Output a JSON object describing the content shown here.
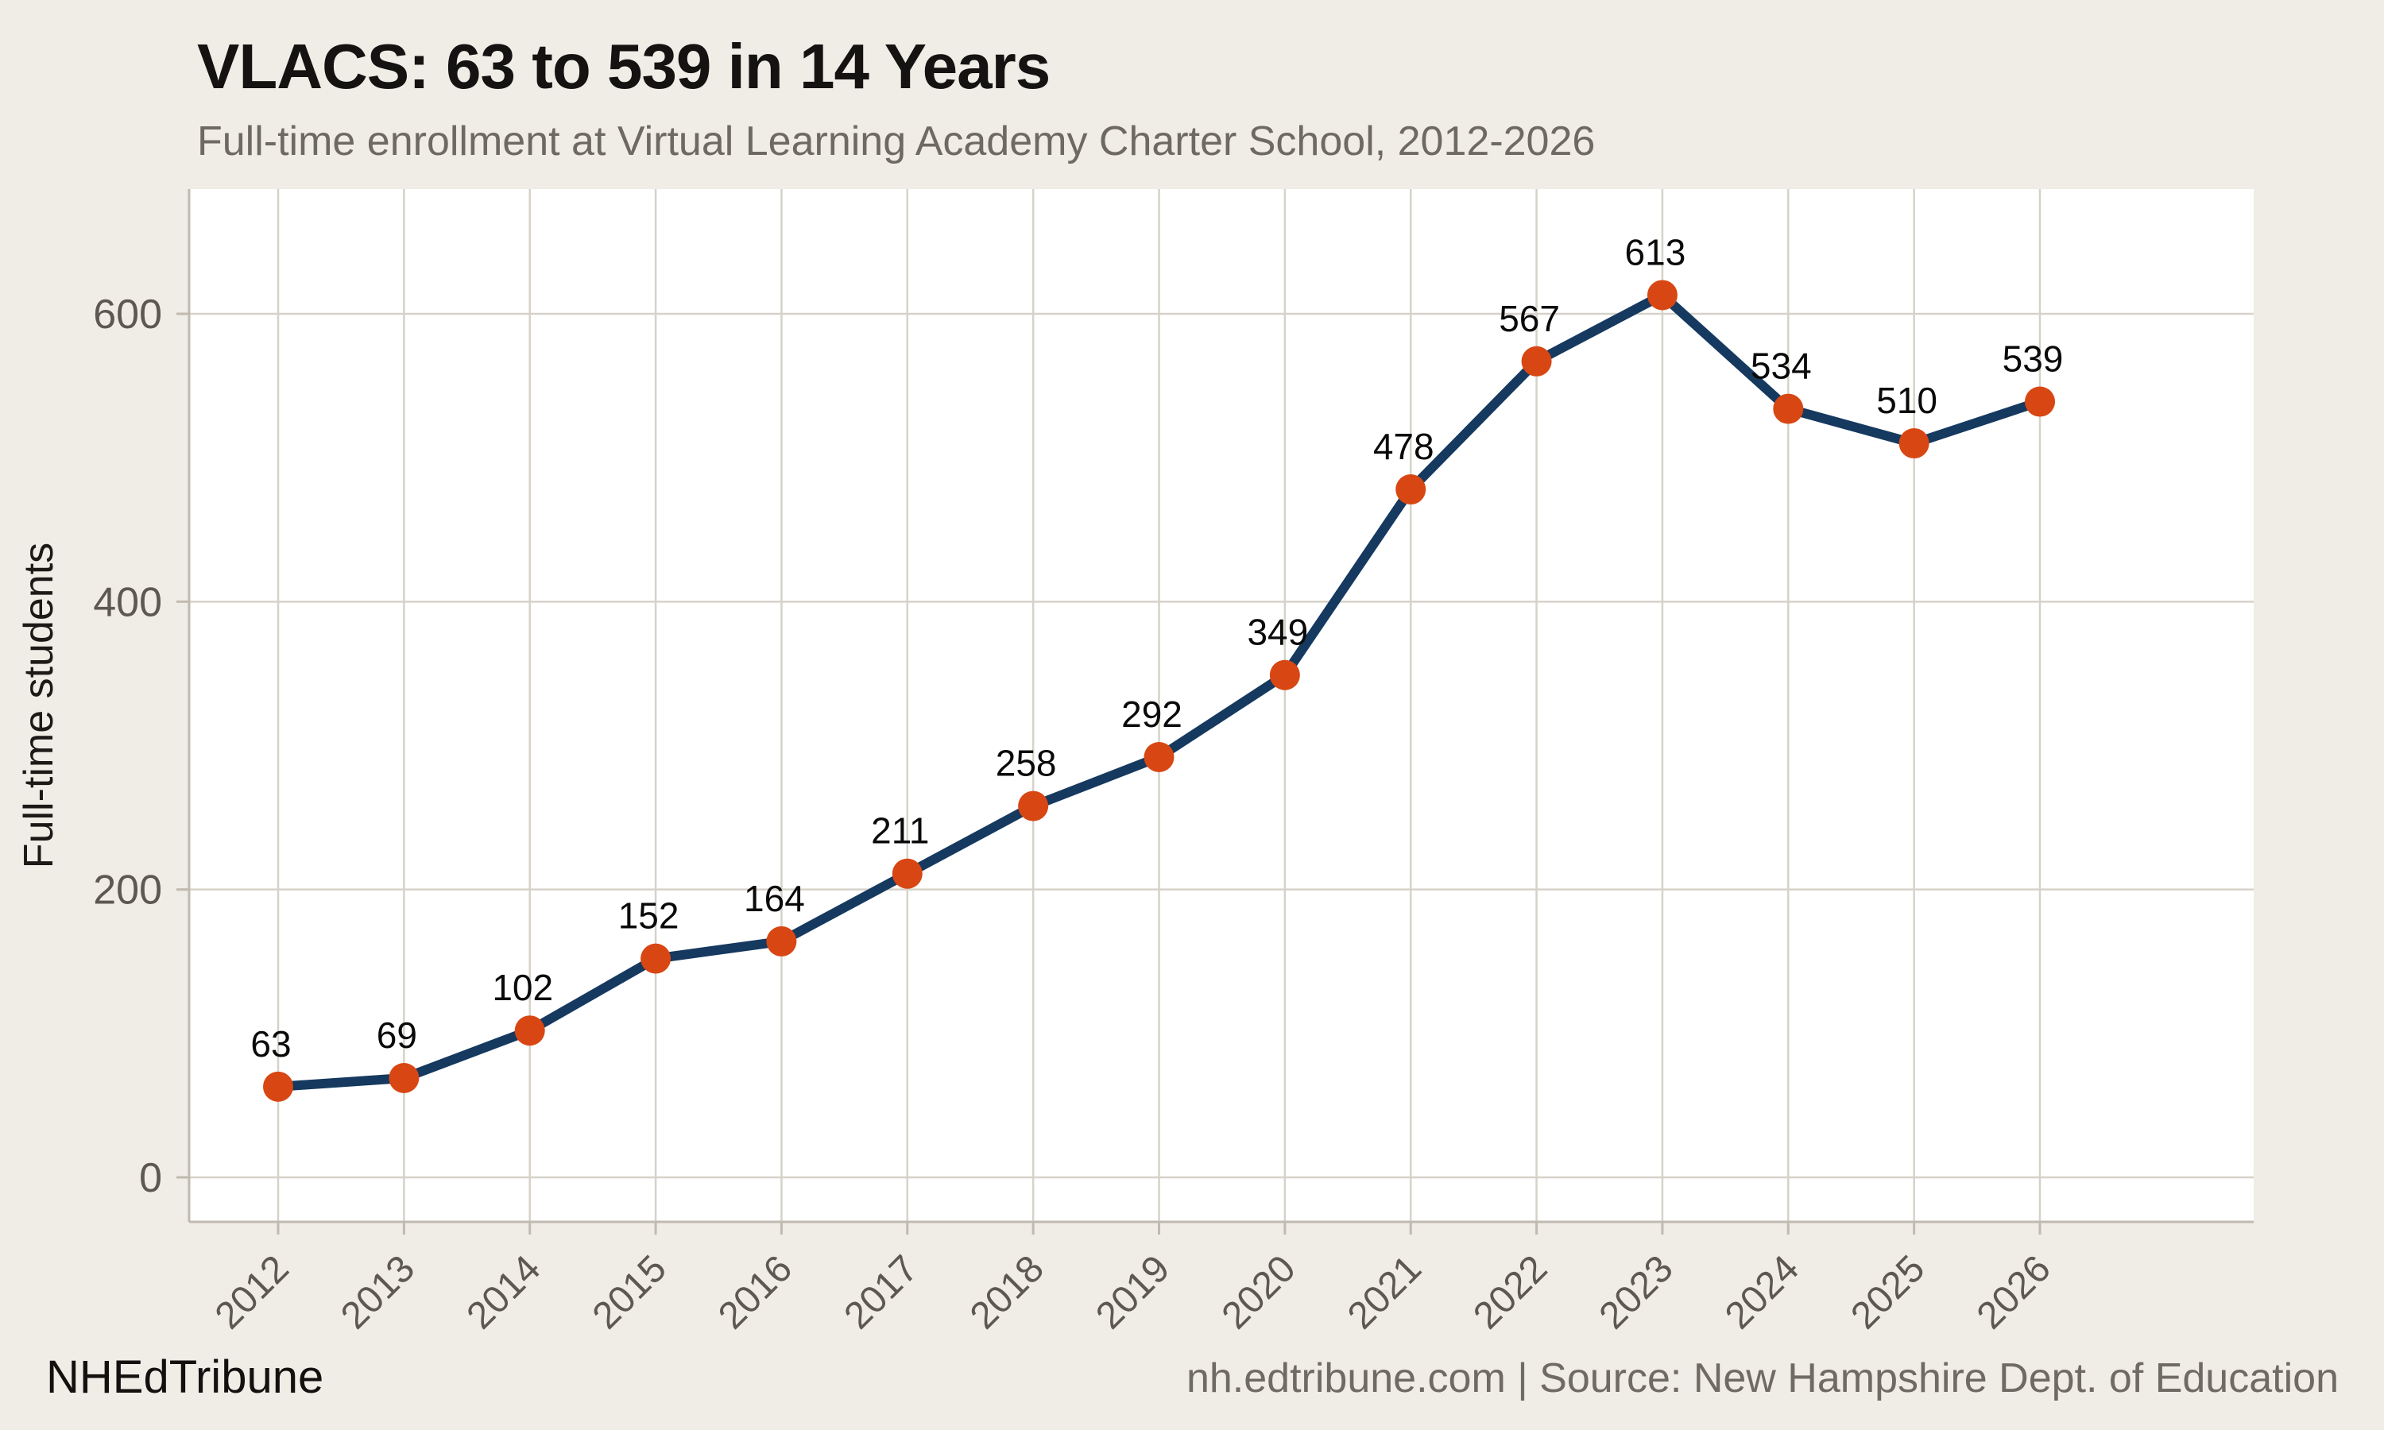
{
  "header": {
    "title": "VLACS: 63 to 539 in 14 Years",
    "subtitle": "Full-time enrollment at Virtual Learning Academy Charter School, 2012-2026"
  },
  "footer": {
    "brand": "NHEdTribune",
    "source": "nh.edtribune.com | Source: New Hampshire Dept. of Education"
  },
  "chart_data": {
    "type": "line",
    "title": "VLACS: 63 to 539 in 14 Years",
    "subtitle": "Full-time enrollment at Virtual Learning Academy Charter School, 2012-2026",
    "x": [
      "2012",
      "2013",
      "2014",
      "2015",
      "2016",
      "2017",
      "2018",
      "2019",
      "2020",
      "2021",
      "2022",
      "2023",
      "2024",
      "2025",
      "2026"
    ],
    "series": [
      {
        "name": "Full-time students",
        "values": [
          63,
          69,
          102,
          152,
          164,
          211,
          258,
          292,
          349,
          478,
          567,
          613,
          534,
          510,
          539
        ]
      }
    ],
    "xlabel": "",
    "ylabel": "Full-time students",
    "yticks": [
      0,
      200,
      400,
      600
    ],
    "ylim": [
      -30,
      687
    ],
    "grid": true,
    "legend": false,
    "point_labels": true,
    "colors": {
      "background": "#f0ece6",
      "plot_background": "#ffffff",
      "gridline": "#d6d2c9",
      "axis": "#c0bab0",
      "tick_label": "#5d5850",
      "line": "#15395f",
      "point": "#d84713",
      "label": "#0a0a0a",
      "title": "#141312",
      "subtitle": "#6e6a62"
    }
  }
}
